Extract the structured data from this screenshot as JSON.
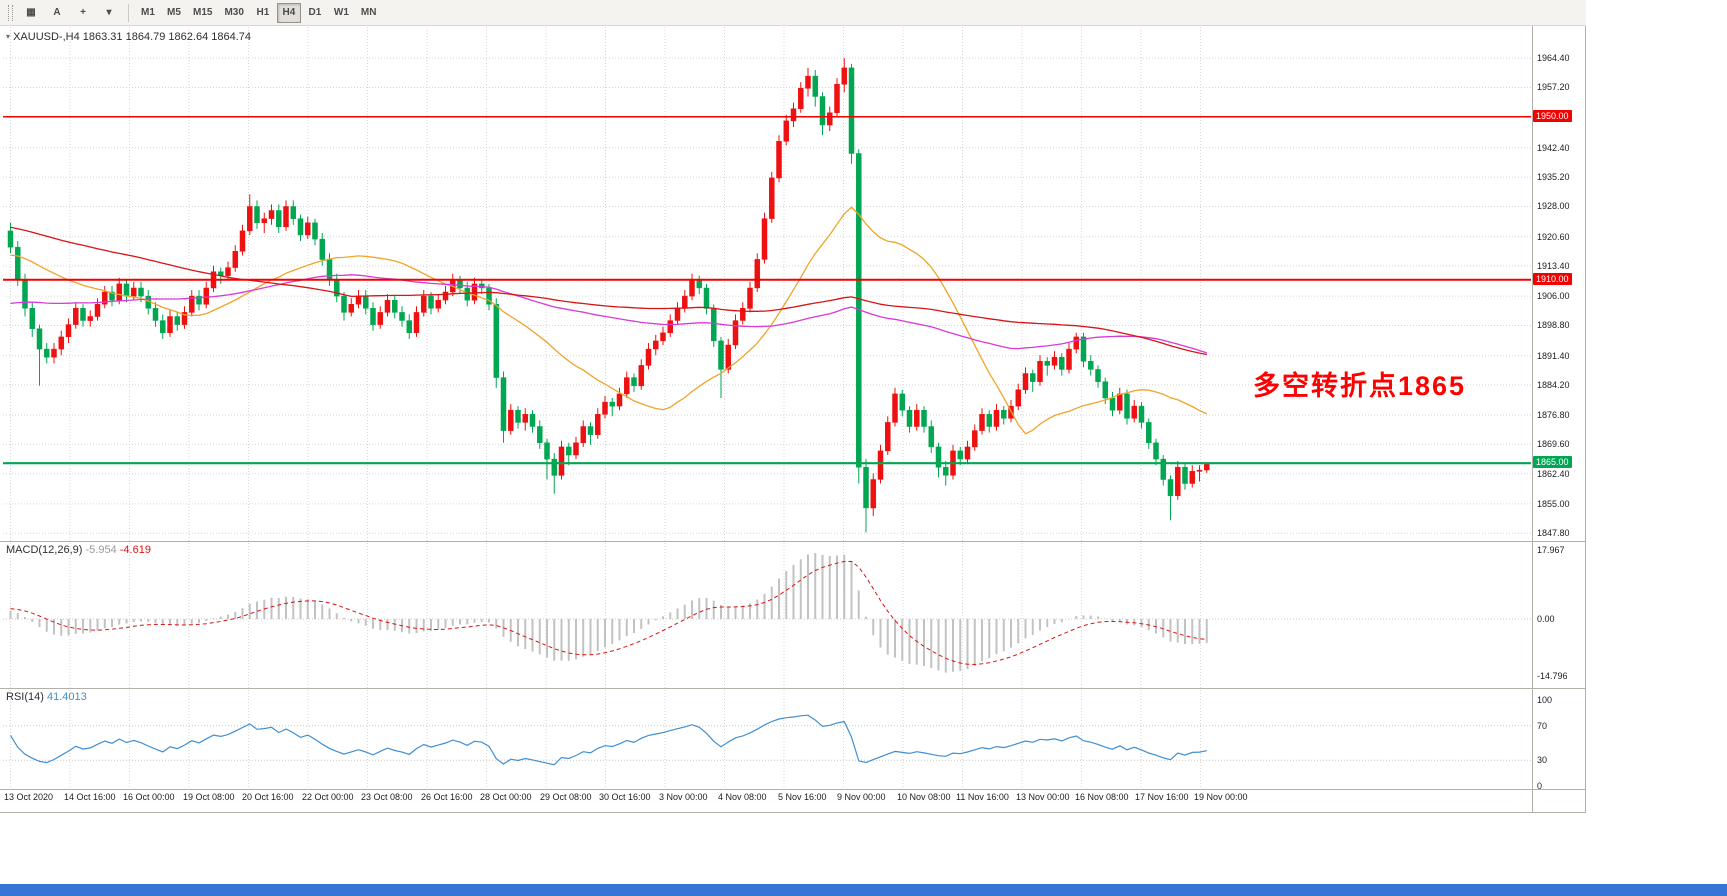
{
  "toolbar": {
    "left_buttons": [
      {
        "name": "tick-chart-button",
        "glyph": "▦"
      },
      {
        "name": "annotate-text-button",
        "glyph": "A"
      },
      {
        "name": "crosshair-button",
        "glyph": "+"
      },
      {
        "name": "tools-dropdown-button",
        "glyph": "▾"
      }
    ],
    "timeframes": [
      "M1",
      "M5",
      "M15",
      "M30",
      "H1",
      "H4",
      "D1",
      "W1",
      "MN"
    ],
    "active_timeframe": "H4"
  },
  "chart_header": {
    "symbol": "XAUUSD-,H4",
    "open": "1863.31",
    "high": "1864.79",
    "low": "1862.64",
    "close": "1864.74"
  },
  "annotation": {
    "text": "多空转折点1865",
    "color": "#ff0000"
  },
  "indicators": {
    "macd": {
      "label": "MACD(12,26,9)",
      "main_value": "-5.954",
      "signal_value": "-4.619",
      "fast": 12,
      "slow": 26,
      "signal": 9,
      "axis_max": "17.967",
      "axis_zero": "0.00",
      "axis_min": "-14.796",
      "histogram_color": "#c2c2c2",
      "signal_color": "#d81515"
    },
    "rsi": {
      "label": "RSI(14)",
      "value": "41.4013",
      "period": 14,
      "levels": [
        100,
        70,
        30,
        0
      ],
      "line_color": "#3f8fd2"
    }
  },
  "price_axis": {
    "ticks": [
      "1964.40",
      "1957.20",
      "1942.40",
      "1935.20",
      "1928.00",
      "1920.60",
      "1913.40",
      "1906.00",
      "1898.80",
      "1891.40",
      "1884.20",
      "1876.80",
      "1869.60",
      "1862.40",
      "1855.00",
      "1847.80"
    ],
    "badges": [
      {
        "value": "1950.00",
        "color": "#f30000"
      },
      {
        "value": "1910.00",
        "color": "#f30000"
      },
      {
        "value": "1865.00",
        "color": "#00a651"
      }
    ]
  },
  "hlines": [
    {
      "price": 1950.0,
      "color": "#f30000",
      "width": 1.5
    },
    {
      "price": 1910.0,
      "color": "#f30000",
      "width": 2
    },
    {
      "price": 1865.0,
      "color": "#00a651",
      "width": 2.2
    }
  ],
  "time_axis": {
    "labels": [
      "13 Oct 2020",
      "14 Oct 16:00",
      "16 Oct 00:00",
      "19 Oct 08:00",
      "20 Oct 16:00",
      "22 Oct 00:00",
      "23 Oct 08:00",
      "26 Oct 16:00",
      "28 Oct 00:00",
      "29 Oct 08:00",
      "30 Oct 16:00",
      "3 Nov 00:00",
      "4 Nov 08:00",
      "5 Nov 16:00",
      "9 Nov 00:00",
      "10 Nov 08:00",
      "11 Nov 16:00",
      "13 Nov 00:00",
      "16 Nov 08:00",
      "17 Nov 16:00",
      "19 Nov 00:00"
    ]
  },
  "chart_data": {
    "type": "candlestick-ohlc",
    "symbol": "XAUUSD",
    "timeframe": "H4",
    "price_range_top": 1971.8,
    "price_range_bottom": 1845.9,
    "up_color": "#ee1111",
    "down_color": "#00a651",
    "moving_averages": [
      {
        "window": 24,
        "color": "#efa42a"
      },
      {
        "window": 72,
        "color": "#d73ad7"
      },
      {
        "window": 120,
        "color": "#d81414"
      }
    ],
    "prehistory_for_indicators": [
      [
        48,
        1952
      ],
      [
        48,
        1898
      ],
      [
        24,
        1916
      ]
    ],
    "candles": [
      [
        1922,
        1924,
        1916.5,
        1918
      ],
      [
        1918,
        1919.5,
        1908.5,
        1910
      ],
      [
        1910,
        1911.5,
        1901,
        1903
      ],
      [
        1903,
        1904.5,
        1896,
        1898
      ],
      [
        1898,
        1899,
        1884,
        1893
      ],
      [
        1893,
        1894.5,
        1889.5,
        1891
      ],
      [
        1891,
        1894.5,
        1889.5,
        1893
      ],
      [
        1893,
        1897.5,
        1891.5,
        1896
      ],
      [
        1896,
        1900.5,
        1894.5,
        1899
      ],
      [
        1899,
        1904.5,
        1898,
        1903
      ],
      [
        1903,
        1904,
        1898.5,
        1900
      ],
      [
        1900,
        1902.5,
        1898.5,
        1901
      ],
      [
        1901,
        1905.5,
        1900,
        1904
      ],
      [
        1904,
        1908.5,
        1903,
        1907
      ],
      [
        1907,
        1908.5,
        1903.5,
        1905
      ],
      [
        1905,
        1910.5,
        1904,
        1909
      ],
      [
        1909,
        1910,
        1904.5,
        1906
      ],
      [
        1906,
        1909.5,
        1905,
        1908
      ],
      [
        1908,
        1909.5,
        1904.5,
        1906
      ],
      [
        1906,
        1907.5,
        1901.5,
        1903
      ],
      [
        1903,
        1904.5,
        1898.5,
        1900
      ],
      [
        1900,
        1901.5,
        1895.5,
        1897
      ],
      [
        1897,
        1902.5,
        1896,
        1901
      ],
      [
        1901,
        1902,
        1897.5,
        1899
      ],
      [
        1899,
        1903.5,
        1898,
        1902
      ],
      [
        1902,
        1907.5,
        1901,
        1906
      ],
      [
        1906,
        1907.5,
        1902.5,
        1904
      ],
      [
        1904,
        1909.5,
        1903,
        1908
      ],
      [
        1908,
        1913.5,
        1907,
        1912
      ],
      [
        1912,
        1913,
        1909,
        1911
      ],
      [
        1911,
        1914.5,
        1910,
        1913
      ],
      [
        1913,
        1918.5,
        1912,
        1917
      ],
      [
        1917,
        1923.5,
        1916,
        1922
      ],
      [
        1922,
        1931,
        1921,
        1928
      ],
      [
        1928,
        1929.5,
        1922.5,
        1924
      ],
      [
        1924,
        1926.5,
        1921.5,
        1925
      ],
      [
        1925,
        1928.5,
        1923.5,
        1927
      ],
      [
        1927,
        1928.5,
        1921.5,
        1923
      ],
      [
        1923,
        1929.5,
        1922,
        1928
      ],
      [
        1928,
        1929.5,
        1923.5,
        1925
      ],
      [
        1925,
        1926,
        1919.5,
        1921
      ],
      [
        1921,
        1925.5,
        1920,
        1924
      ],
      [
        1924,
        1925,
        1918.5,
        1920
      ],
      [
        1920,
        1921.5,
        1913.5,
        1915
      ],
      [
        1915,
        1916.5,
        1908.5,
        1910
      ],
      [
        1910,
        1911.5,
        1904.5,
        1906
      ],
      [
        1906,
        1907,
        1900,
        1902
      ],
      [
        1902,
        1905.5,
        1901,
        1904
      ],
      [
        1904,
        1907.5,
        1903,
        1906
      ],
      [
        1906,
        1907.5,
        1901.5,
        1903
      ],
      [
        1903,
        1904.5,
        1897.5,
        1899
      ],
      [
        1899,
        1903.5,
        1898,
        1902
      ],
      [
        1902,
        1906.5,
        1901,
        1905
      ],
      [
        1905,
        1906,
        1900.5,
        1902
      ],
      [
        1902,
        1903.5,
        1898.5,
        1900
      ],
      [
        1900,
        1901.5,
        1895.5,
        1897
      ],
      [
        1897,
        1903.5,
        1896,
        1902
      ],
      [
        1902,
        1907.5,
        1901,
        1906
      ],
      [
        1906,
        1907,
        1901.5,
        1903
      ],
      [
        1903,
        1906.5,
        1902,
        1905
      ],
      [
        1905,
        1908.5,
        1904,
        1907
      ],
      [
        1907,
        1911.5,
        1906,
        1910
      ],
      [
        1910,
        1911,
        1906.5,
        1908
      ],
      [
        1908,
        1909.5,
        1903.5,
        1905
      ],
      [
        1905,
        1910.5,
        1904,
        1909
      ],
      [
        1909,
        1910,
        1906.5,
        1908
      ],
      [
        1908,
        1909,
        1902.5,
        1904
      ],
      [
        1904,
        1905.5,
        1883.5,
        1886
      ],
      [
        1886,
        1887.5,
        1870,
        1873
      ],
      [
        1873,
        1879.5,
        1872,
        1878
      ],
      [
        1878,
        1879,
        1873.5,
        1875
      ],
      [
        1875,
        1878.5,
        1873,
        1877
      ],
      [
        1877,
        1878,
        1872.5,
        1874
      ],
      [
        1874,
        1875.5,
        1868.5,
        1870
      ],
      [
        1870,
        1871,
        1861,
        1866
      ],
      [
        1866,
        1867.5,
        1857.5,
        1862
      ],
      [
        1862,
        1870.5,
        1861,
        1869
      ],
      [
        1869,
        1870,
        1864.5,
        1867
      ],
      [
        1867,
        1871.5,
        1866,
        1870
      ],
      [
        1870,
        1875.5,
        1869,
        1874
      ],
      [
        1874,
        1875,
        1869.5,
        1872
      ],
      [
        1872,
        1878.5,
        1871,
        1877
      ],
      [
        1877,
        1881.5,
        1876,
        1880
      ],
      [
        1880,
        1881,
        1876.5,
        1879
      ],
      [
        1879,
        1883.5,
        1878,
        1882
      ],
      [
        1882,
        1887.5,
        1881,
        1886
      ],
      [
        1886,
        1887,
        1882.5,
        1884
      ],
      [
        1884,
        1890.5,
        1883,
        1889
      ],
      [
        1889,
        1894.5,
        1888,
        1893
      ],
      [
        1893,
        1896.5,
        1891.5,
        1895
      ],
      [
        1895,
        1898.5,
        1894,
        1897
      ],
      [
        1897,
        1901.5,
        1896,
        1900
      ],
      [
        1900,
        1904.5,
        1899,
        1903
      ],
      [
        1903,
        1907.5,
        1902,
        1906
      ],
      [
        1906,
        1911.5,
        1905,
        1910
      ],
      [
        1910,
        1911,
        1906.5,
        1908
      ],
      [
        1908,
        1909,
        1901.5,
        1903
      ],
      [
        1903,
        1904,
        1893.5,
        1895
      ],
      [
        1895,
        1896,
        1881,
        1888
      ],
      [
        1888,
        1895.5,
        1887,
        1894
      ],
      [
        1894,
        1901.5,
        1893,
        1900
      ],
      [
        1900,
        1904.5,
        1899,
        1903
      ],
      [
        1903,
        1909.5,
        1902,
        1908
      ],
      [
        1908,
        1916.5,
        1907,
        1915
      ],
      [
        1915,
        1926.5,
        1914,
        1925
      ],
      [
        1925,
        1936.5,
        1924,
        1935
      ],
      [
        1935,
        1945.5,
        1934,
        1944
      ],
      [
        1944,
        1950.5,
        1943,
        1949
      ],
      [
        1949,
        1953.5,
        1947.5,
        1952
      ],
      [
        1952,
        1958.5,
        1951,
        1957
      ],
      [
        1957,
        1962,
        1955,
        1960
      ],
      [
        1960,
        1961.5,
        1952.5,
        1955
      ],
      [
        1955,
        1956,
        1945.5,
        1948
      ],
      [
        1948,
        1952.5,
        1946.5,
        1951
      ],
      [
        1951,
        1959.5,
        1950,
        1958
      ],
      [
        1958,
        1964.4,
        1956,
        1962
      ],
      [
        1962,
        1963,
        1938.5,
        1941
      ],
      [
        1941,
        1942,
        1860,
        1864
      ],
      [
        1864,
        1866,
        1848,
        1854
      ],
      [
        1854,
        1862.5,
        1852,
        1861
      ],
      [
        1861,
        1869.5,
        1860,
        1868
      ],
      [
        1868,
        1876.5,
        1867,
        1875
      ],
      [
        1875,
        1883.5,
        1874,
        1882
      ],
      [
        1882,
        1883,
        1876.5,
        1878
      ],
      [
        1878,
        1879,
        1872.5,
        1874
      ],
      [
        1874,
        1879.5,
        1873,
        1878
      ],
      [
        1878,
        1879,
        1872.5,
        1874
      ],
      [
        1874,
        1875.5,
        1867.5,
        1869
      ],
      [
        1869,
        1870,
        1861.5,
        1864
      ],
      [
        1864,
        1865.5,
        1859.5,
        1862
      ],
      [
        1862,
        1869.5,
        1861,
        1868
      ],
      [
        1868,
        1869,
        1864.5,
        1866
      ],
      [
        1866,
        1870.5,
        1865,
        1869
      ],
      [
        1869,
        1874.5,
        1868,
        1873
      ],
      [
        1873,
        1878.5,
        1872,
        1877
      ],
      [
        1877,
        1878,
        1872.5,
        1874
      ],
      [
        1874,
        1879.5,
        1873,
        1878
      ],
      [
        1878,
        1879,
        1874.5,
        1876
      ],
      [
        1876,
        1880.5,
        1875,
        1879
      ],
      [
        1879,
        1884.5,
        1878,
        1883
      ],
      [
        1883,
        1888.5,
        1882,
        1887
      ],
      [
        1887,
        1888,
        1882.5,
        1885
      ],
      [
        1885,
        1891.5,
        1884,
        1890
      ],
      [
        1890,
        1891,
        1886.5,
        1889
      ],
      [
        1889,
        1892.5,
        1888,
        1891
      ],
      [
        1891,
        1892,
        1886.5,
        1888
      ],
      [
        1888,
        1894.5,
        1887,
        1893
      ],
      [
        1893,
        1897,
        1892,
        1896
      ],
      [
        1896,
        1897,
        1888.5,
        1890
      ],
      [
        1890,
        1891.5,
        1886.5,
        1888
      ],
      [
        1888,
        1889,
        1883.5,
        1885
      ],
      [
        1885,
        1886,
        1879.5,
        1881
      ],
      [
        1881,
        1882.5,
        1876.5,
        1878
      ],
      [
        1878,
        1883.5,
        1877,
        1882
      ],
      [
        1882,
        1883,
        1874.5,
        1876
      ],
      [
        1876,
        1880.5,
        1875,
        1879
      ],
      [
        1879,
        1880,
        1873.5,
        1875
      ],
      [
        1875,
        1876,
        1868.5,
        1870
      ],
      [
        1870,
        1871,
        1864.5,
        1866
      ],
      [
        1866,
        1867,
        1859.5,
        1861
      ],
      [
        1861,
        1862,
        1851,
        1857
      ],
      [
        1857,
        1865.5,
        1856,
        1864
      ],
      [
        1864,
        1865,
        1858.5,
        1860
      ],
      [
        1860,
        1864.5,
        1859,
        1863
      ],
      [
        1863,
        1864.5,
        1860.5,
        1863.31
      ],
      [
        1863.31,
        1864.79,
        1862.64,
        1864.74
      ]
    ]
  },
  "window": {
    "bottom_strip_color": "#3575d3"
  }
}
